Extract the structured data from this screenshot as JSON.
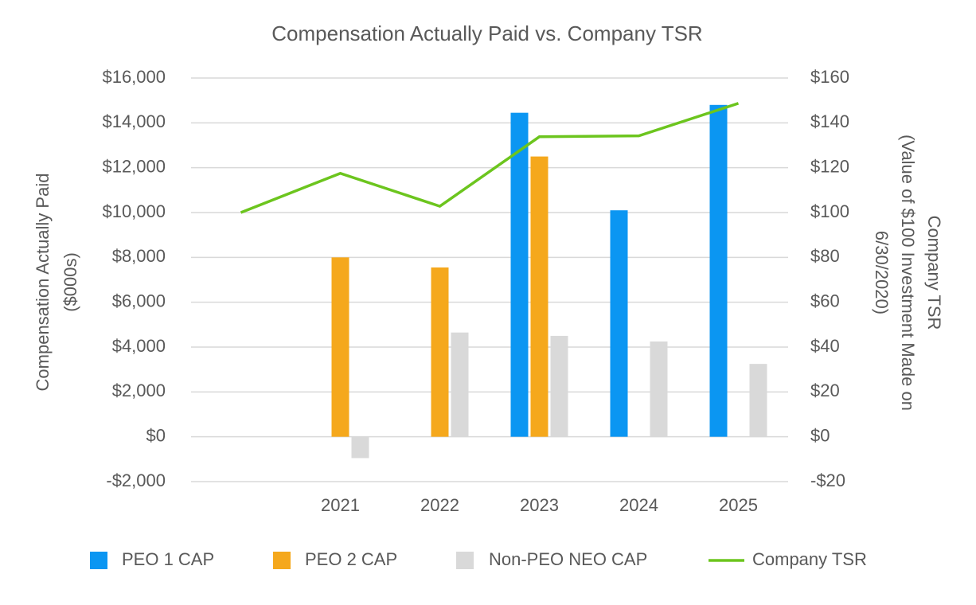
{
  "chart_data": {
    "type": "bar",
    "title": "Compensation Actually Paid vs. Company TSR",
    "ylabel": [
      "Compensation Actually Paid",
      "($000s)"
    ],
    "y2label": [
      "Company TSR",
      "(Value of $100 Investment Made on",
      "6/30/2020)"
    ],
    "categories": [
      null,
      "2021",
      "2022",
      "2023",
      "2024",
      "2025"
    ],
    "series": [
      {
        "name": "PEO 1 CAP",
        "type": "bar",
        "color": "#0b96f2",
        "values": [
          null,
          null,
          null,
          14450,
          10100,
          14800
        ]
      },
      {
        "name": "PEO 2 CAP",
        "type": "bar",
        "color": "#f5a81c",
        "values": [
          null,
          8000,
          7550,
          12500,
          null,
          null
        ]
      },
      {
        "name": "Non-PEO NEO CAP",
        "type": "bar",
        "color": "#d9d9d9",
        "values": [
          null,
          -950,
          4650,
          4500,
          4250,
          3250
        ]
      },
      {
        "name": "Company TSR",
        "type": "line",
        "axis": "y2",
        "color": "#6cc51e",
        "values": [
          100,
          117.5,
          102.8,
          133.8,
          134.2,
          148.7
        ]
      }
    ],
    "ylim": [
      -2000,
      16000
    ],
    "yticks": [
      {
        "value": -2000,
        "label": "-$2,000"
      },
      {
        "value": 0,
        "label": "$0"
      },
      {
        "value": 2000,
        "label": "$2,000"
      },
      {
        "value": 4000,
        "label": "$4,000"
      },
      {
        "value": 6000,
        "label": "$6,000"
      },
      {
        "value": 8000,
        "label": "$8,000"
      },
      {
        "value": 10000,
        "label": "$10,000"
      },
      {
        "value": 12000,
        "label": "$12,000"
      },
      {
        "value": 14000,
        "label": "$14,000"
      },
      {
        "value": 16000,
        "label": "$16,000"
      }
    ],
    "y2lim": [
      -20,
      160
    ],
    "y2ticks": [
      {
        "value": -20,
        "label": "-$20"
      },
      {
        "value": 0,
        "label": "$0"
      },
      {
        "value": 20,
        "label": "$20"
      },
      {
        "value": 40,
        "label": "$40"
      },
      {
        "value": 60,
        "label": "$60"
      },
      {
        "value": 80,
        "label": "$80"
      },
      {
        "value": 100,
        "label": "$100"
      },
      {
        "value": 120,
        "label": "$120"
      },
      {
        "value": 140,
        "label": "$140"
      },
      {
        "value": 160,
        "label": "$160"
      }
    ],
    "grid": true,
    "legend": "bottom"
  }
}
